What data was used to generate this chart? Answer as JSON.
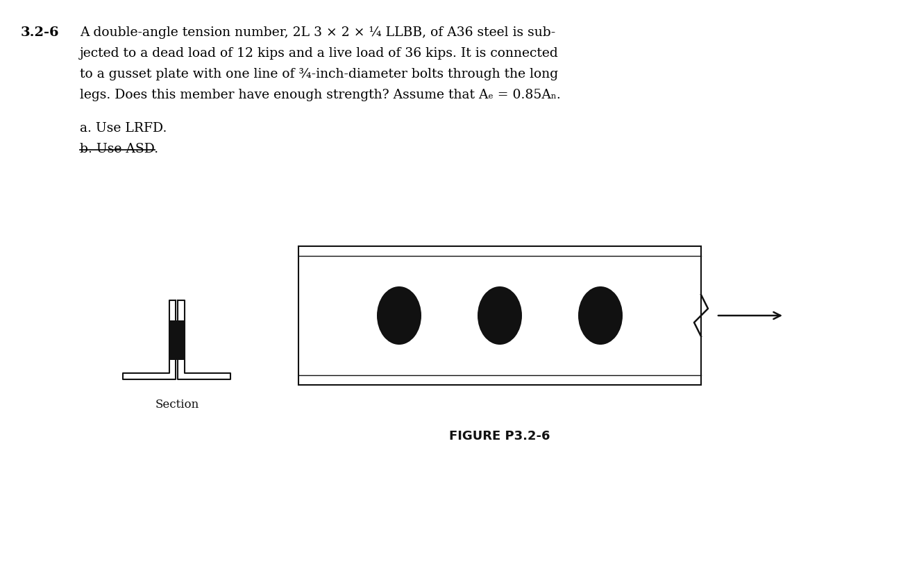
{
  "bg_color": "#ffffff",
  "title_num": "3.2-6",
  "text_lines": [
    "A double-angle tension number, 2L 3 × 2 × ¼ LLBB, of A36 steel is sub-",
    "jected to a dead load of 12 kips and a live load of 36 kips. It is connected",
    "to a gusset plate with one line of ¾-inch-diameter bolts through the long",
    "legs. Does this member have enough strength? Assume that Aₑ = 0.85Aₙ."
  ],
  "label_a": "a. Use LRFD.",
  "label_b": "b. Use ASD.",
  "section_label": "Section",
  "figure_label": "FIGURE P3.2-6",
  "dark_color": "#111111",
  "title_fontsize": 14,
  "body_fontsize": 13.5,
  "label_fontsize": 13.5
}
